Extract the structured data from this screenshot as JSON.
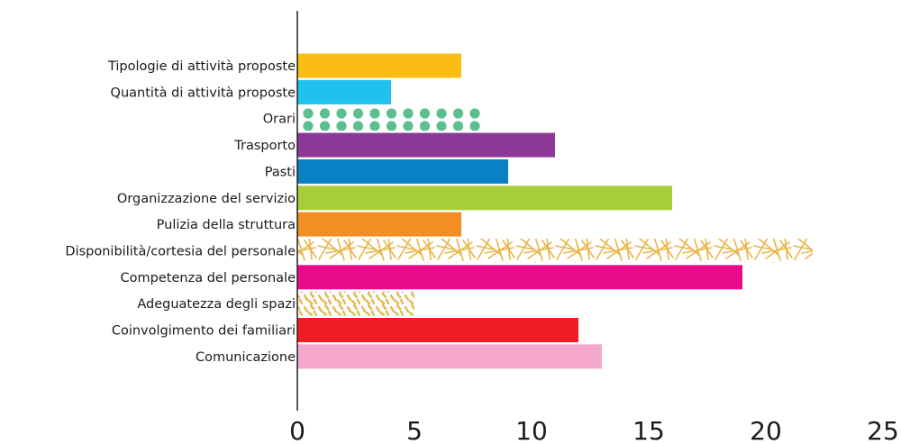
{
  "chart_data": {
    "type": "bar",
    "orientation": "horizontal",
    "title": "",
    "xlabel": "",
    "ylabel": "",
    "categories": [
      "Tipologie di attività proposte",
      "Quantità di attività proposte",
      "Orari",
      "Trasporto",
      "Pasti",
      "Organizzazione del servizio",
      "Pulizia della struttura",
      "Disponibilità/cortesia del personale",
      "Competenza del personale",
      "Adeguatezza degli spazi",
      "Coinvolgimento dei familiari",
      "Comunicazione"
    ],
    "values": [
      7,
      4,
      8,
      11,
      9,
      16,
      7,
      22,
      19,
      5,
      12,
      13
    ],
    "colors": [
      "#fbbc14",
      "#1fc1ee",
      "#5cc08e",
      "#8d3797",
      "#0a80c5",
      "#a6ce39",
      "#f38f22",
      "#e8b64a",
      "#ea0b8c",
      "#e8b64a",
      "#ee1d23",
      "#f5a8cb"
    ],
    "fills": [
      "solid",
      "solid",
      "dots",
      "solid",
      "solid",
      "solid",
      "solid",
      "sticks",
      "solid",
      "dashes",
      "solid",
      "solid"
    ],
    "xlim": [
      0,
      25
    ],
    "xticks": [
      0,
      5,
      10,
      15,
      20,
      25
    ],
    "grid": false,
    "legend": "none"
  }
}
